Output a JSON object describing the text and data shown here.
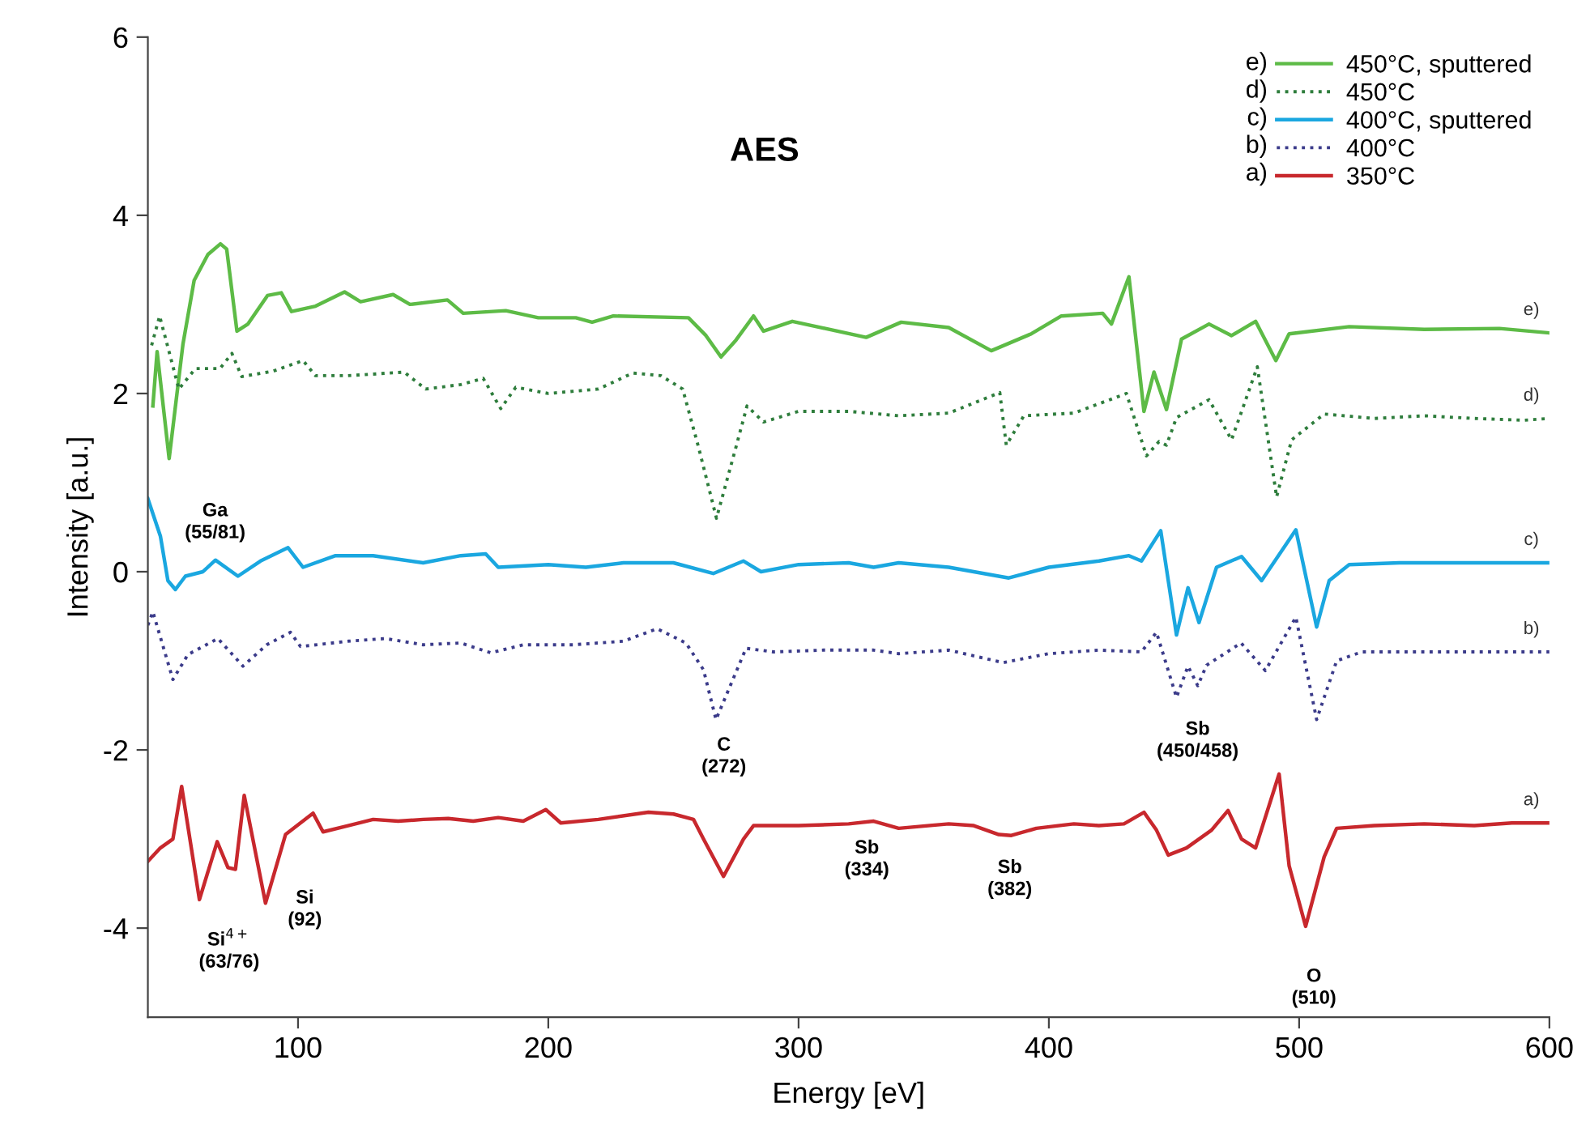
{
  "chart_data": {
    "type": "line",
    "title": "AES",
    "xlabel": "Energy [eV]",
    "ylabel": "Intensity [a.u.]",
    "xlim": [
      40,
      600
    ],
    "ylim": [
      -5,
      6
    ],
    "xticks": [
      100,
      200,
      300,
      400,
      500,
      600
    ],
    "yticks": [
      -4,
      -2,
      0,
      2,
      4,
      6
    ],
    "grid": false,
    "legend": "top right",
    "marker": "none",
    "series": [
      {
        "name": "450°C, sputtered",
        "color": "#5dbb46",
        "line_style": "solid",
        "x": [
          42,
          43.7,
          48.5,
          54,
          58.5,
          64,
          69,
          71.5,
          75.6,
          80,
          87.8,
          93.3,
          97.4,
          107,
          118.6,
          125,
          138,
          144.7,
          159.7,
          166,
          183,
          196,
          211,
          217.5,
          226,
          256,
          263,
          269,
          275,
          282,
          286,
          297.5,
          327,
          341,
          360,
          377,
          393,
          405,
          421.5,
          425,
          432,
          438,
          442,
          447,
          453,
          464,
          473,
          482.6,
          490.7,
          496,
          520,
          550,
          580,
          600
        ],
        "values": [
          1.86,
          2.47,
          1.27,
          2.55,
          3.27,
          3.56,
          3.68,
          3.62,
          2.7,
          2.78,
          3.1,
          3.13,
          2.92,
          2.98,
          3.14,
          3.03,
          3.11,
          3.0,
          3.05,
          2.9,
          2.93,
          2.85,
          2.85,
          2.8,
          2.87,
          2.85,
          2.65,
          2.41,
          2.6,
          2.87,
          2.7,
          2.81,
          2.63,
          2.8,
          2.74,
          2.48,
          2.67,
          2.87,
          2.9,
          2.78,
          3.31,
          1.8,
          2.24,
          1.82,
          2.61,
          2.78,
          2.65,
          2.81,
          2.37,
          2.67,
          2.75,
          2.72,
          2.73,
          2.68
        ]
      },
      {
        "name": "450°C",
        "color": "#2e7d3c",
        "line_style": "dotted",
        "x": [
          41.5,
          44.7,
          52.4,
          59,
          68.8,
          73.6,
          77.5,
          90,
          102,
          107,
          120,
          142.4,
          151,
          165,
          174,
          181,
          187,
          200,
          220,
          233.8,
          245,
          253.7,
          260,
          267.2,
          275,
          279.4,
          286,
          300,
          320,
          340,
          360,
          380.4,
          383,
          390,
          410,
          431,
          439,
          444,
          447,
          451,
          464,
          473,
          483.3,
          491,
          497,
          510,
          530,
          550,
          570,
          590,
          600
        ],
        "values": [
          2.54,
          2.87,
          2.05,
          2.28,
          2.28,
          2.45,
          2.19,
          2.25,
          2.37,
          2.2,
          2.2,
          2.24,
          2.05,
          2.1,
          2.17,
          1.83,
          2.07,
          2.0,
          2.05,
          2.23,
          2.2,
          2.05,
          1.4,
          0.6,
          1.4,
          1.86,
          1.68,
          1.8,
          1.8,
          1.75,
          1.78,
          2.01,
          1.42,
          1.75,
          1.78,
          2.0,
          1.3,
          1.46,
          1.42,
          1.73,
          1.93,
          1.48,
          2.3,
          0.84,
          1.48,
          1.77,
          1.72,
          1.75,
          1.72,
          1.7,
          1.72
        ]
      },
      {
        "name": "400°C, sputtered",
        "color": "#1aa7e0",
        "line_style": "solid",
        "x": [
          40,
          45,
          48,
          51,
          55,
          62,
          67,
          76,
          85,
          96,
          102,
          115,
          130,
          150,
          165,
          175,
          180,
          200,
          215,
          230,
          250,
          265.9,
          278,
          285,
          300,
          320,
          330,
          340,
          360,
          384,
          400,
          420,
          432,
          437,
          444.7,
          451,
          455.6,
          460,
          467,
          477,
          485,
          498.7,
          507,
          512,
          520,
          540,
          560,
          580,
          600
        ],
        "values": [
          0.82,
          0.4,
          -0.1,
          -0.2,
          -0.05,
          0.0,
          0.13,
          -0.05,
          0.12,
          0.27,
          0.05,
          0.18,
          0.18,
          0.1,
          0.18,
          0.2,
          0.05,
          0.08,
          0.05,
          0.1,
          0.1,
          -0.02,
          0.12,
          0.0,
          0.08,
          0.1,
          0.05,
          0.1,
          0.05,
          -0.07,
          0.05,
          0.12,
          0.18,
          0.12,
          0.46,
          -0.71,
          -0.18,
          -0.57,
          0.05,
          0.17,
          -0.1,
          0.47,
          -0.62,
          -0.1,
          0.08,
          0.1,
          0.1,
          0.1,
          0.1
        ]
      },
      {
        "name": "400°C",
        "color": "#3b3b8a",
        "line_style": "dotted",
        "x": [
          40,
          42,
          50,
          56,
          68,
          78,
          87.5,
          97,
          101,
          120,
          135,
          150,
          165,
          177,
          190,
          210,
          230,
          243.5,
          255,
          262,
          267,
          279,
          290,
          310,
          330,
          340,
          360,
          381.7,
          400,
          420,
          437,
          443,
          451,
          455.6,
          459.5,
          463,
          476.8,
          486.5,
          498.7,
          507,
          515,
          525,
          540,
          560,
          580,
          600
        ],
        "values": [
          -0.6,
          -0.45,
          -1.21,
          -0.93,
          -0.75,
          -1.06,
          -0.82,
          -0.68,
          -0.84,
          -0.78,
          -0.75,
          -0.82,
          -0.8,
          -0.91,
          -0.82,
          -0.82,
          -0.78,
          -0.64,
          -0.8,
          -1.1,
          -1.66,
          -0.86,
          -0.9,
          -0.88,
          -0.88,
          -0.92,
          -0.88,
          -1.02,
          -0.92,
          -0.88,
          -0.9,
          -0.68,
          -1.41,
          -1.06,
          -1.28,
          -1.05,
          -0.8,
          -1.11,
          -0.51,
          -1.66,
          -1.0,
          -0.9,
          -0.9,
          -0.9,
          -0.9,
          -0.9
        ]
      },
      {
        "name": "350°C",
        "color": "#c8282d",
        "line_style": "solid",
        "x": [
          40,
          45,
          50,
          53.5,
          60.6,
          67.7,
          72,
          75,
          78.5,
          87,
          95,
          106,
          110,
          120,
          130,
          140,
          150,
          160,
          170,
          180,
          190,
          199,
          205,
          220,
          240,
          250,
          258,
          262,
          270,
          278,
          282,
          300,
          320,
          330,
          340,
          360,
          370,
          380,
          385,
          395,
          410,
          420,
          430,
          438,
          443,
          447.7,
          455,
          465,
          471.6,
          477,
          482.6,
          492,
          496,
          502.6,
          510,
          515,
          530,
          550,
          570,
          585,
          600
        ],
        "values": [
          -3.25,
          -3.1,
          -3.0,
          -2.41,
          -3.68,
          -3.03,
          -3.32,
          -3.34,
          -2.51,
          -3.72,
          -2.95,
          -2.71,
          -2.92,
          -2.85,
          -2.78,
          -2.8,
          -2.78,
          -2.77,
          -2.8,
          -2.76,
          -2.8,
          -2.67,
          -2.82,
          -2.78,
          -2.7,
          -2.72,
          -2.78,
          -3.0,
          -3.42,
          -3.0,
          -2.85,
          -2.85,
          -2.83,
          -2.8,
          -2.88,
          -2.83,
          -2.85,
          -2.95,
          -2.96,
          -2.88,
          -2.83,
          -2.85,
          -2.83,
          -2.7,
          -2.9,
          -3.18,
          -3.1,
          -2.9,
          -2.68,
          -3.0,
          -3.1,
          -2.27,
          -3.3,
          -3.98,
          -3.2,
          -2.88,
          -2.85,
          -2.83,
          -2.85,
          -2.82,
          -2.82
        ]
      }
    ],
    "annotations": [
      "e)",
      "d)",
      "c)",
      "b)",
      "a)",
      "Ga\n(55/81)",
      "Si$^{4+}$\n(63/76)",
      "Si\n(92)",
      "C\n(272)",
      "Sb\n(334)",
      "Sb\n(382)",
      "Sb\n(450/458)",
      "O\n(510)"
    ]
  }
}
